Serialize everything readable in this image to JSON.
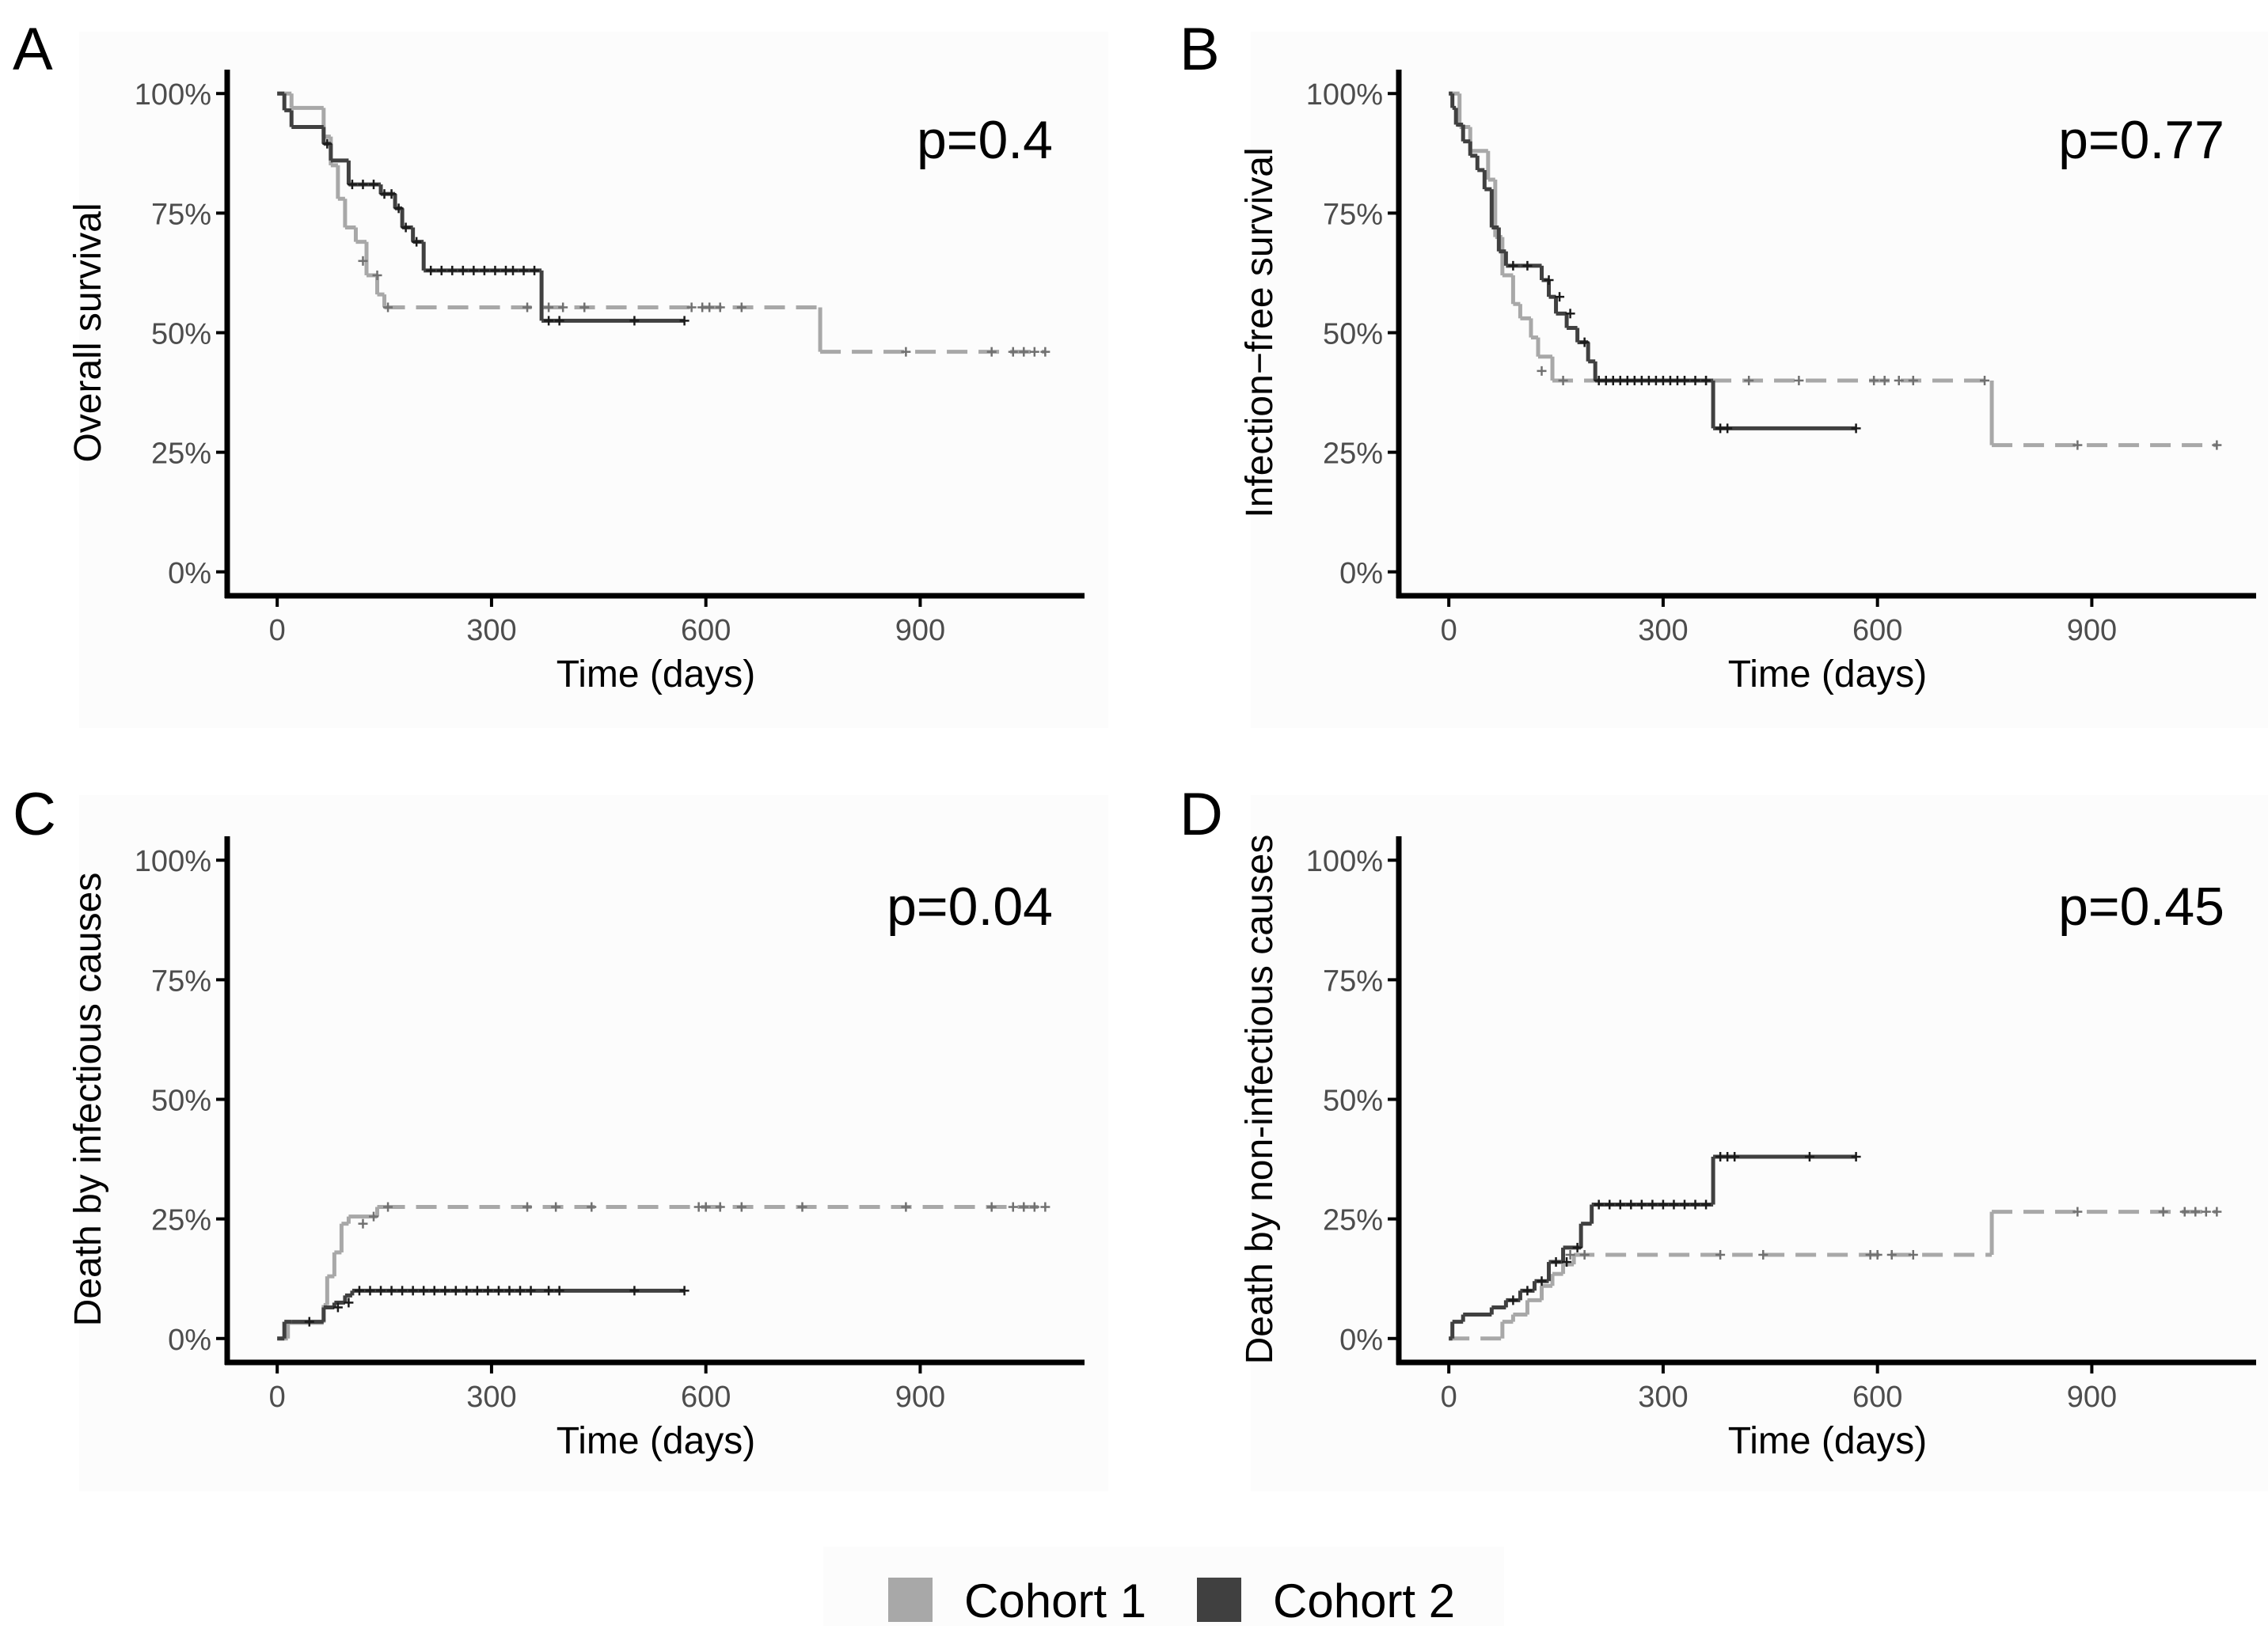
{
  "colors": {
    "cohort1": "#a8a8a8",
    "cohort2": "#404040",
    "axis": "#000000",
    "tick_text": "#4d4d4d",
    "panel_bg": "#fcfcfc"
  },
  "legend": {
    "items": [
      {
        "label": "Cohort 1",
        "color": "#a8a8a8"
      },
      {
        "label": "Cohort 2",
        "color": "#404040"
      }
    ]
  },
  "chart_data": [
    {
      "type": "line",
      "panel": "A",
      "title": "",
      "xlabel": "Time (days)",
      "ylabel": "Overall survival",
      "pvalue": "p=0.4",
      "xlim": [
        -70,
        1130
      ],
      "ylim": [
        -0.05,
        1.05
      ],
      "xticks": [
        0,
        300,
        600,
        900
      ],
      "xtick_labels": [
        "0",
        "300",
        "600",
        "900"
      ],
      "yticks": [
        0,
        0.25,
        0.5,
        0.75,
        1
      ],
      "ytick_labels": [
        "0%",
        "25%",
        "50%",
        "75%",
        "100%"
      ],
      "series": [
        {
          "name": "Cohort 1",
          "dashed_after": 150,
          "x": [
            0,
            20,
            20,
            65,
            65,
            75,
            75,
            85,
            85,
            95,
            95,
            110,
            110,
            125,
            125,
            140,
            140,
            150,
            150,
            760,
            760,
            1075
          ],
          "y": [
            1,
            1,
            0.97,
            0.97,
            0.91,
            0.91,
            0.85,
            0.85,
            0.78,
            0.78,
            0.72,
            0.72,
            0.69,
            0.69,
            0.62,
            0.62,
            0.58,
            0.58,
            0.553,
            0.553,
            0.46,
            0.46
          ],
          "censor_x": [
            120,
            140,
            155,
            350,
            380,
            400,
            430,
            580,
            595,
            605,
            620,
            650,
            880,
            1000,
            1030,
            1045,
            1060,
            1075
          ],
          "censor_y": [
            0.65,
            0.62,
            0.553,
            0.553,
            0.553,
            0.553,
            0.553,
            0.553,
            0.553,
            0.553,
            0.553,
            0.553,
            0.46,
            0.46,
            0.46,
            0.46,
            0.46,
            0.46
          ]
        },
        {
          "name": "Cohort 2",
          "dashed_after": null,
          "x": [
            0,
            10,
            10,
            20,
            20,
            65,
            65,
            75,
            75,
            100,
            100,
            145,
            145,
            165,
            165,
            175,
            175,
            190,
            190,
            205,
            205,
            370,
            370,
            570
          ],
          "y": [
            1,
            1,
            0.965,
            0.965,
            0.93,
            0.93,
            0.895,
            0.895,
            0.86,
            0.86,
            0.81,
            0.81,
            0.79,
            0.79,
            0.76,
            0.76,
            0.72,
            0.72,
            0.69,
            0.69,
            0.63,
            0.63,
            0.525,
            0.525
          ],
          "censor_x": [
            70,
            105,
            120,
            135,
            150,
            160,
            170,
            180,
            195,
            215,
            230,
            245,
            260,
            275,
            290,
            305,
            320,
            330,
            345,
            360,
            380,
            395,
            500,
            570
          ],
          "censor_y": [
            0.895,
            0.81,
            0.81,
            0.81,
            0.79,
            0.79,
            0.76,
            0.72,
            0.69,
            0.63,
            0.63,
            0.63,
            0.63,
            0.63,
            0.63,
            0.63,
            0.63,
            0.63,
            0.63,
            0.63,
            0.525,
            0.525,
            0.525,
            0.525
          ]
        }
      ]
    },
    {
      "type": "line",
      "panel": "B",
      "title": "",
      "xlabel": "Time (days)",
      "ylabel": "Infection−free survival",
      "pvalue": "p=0.77",
      "xlim": [
        -70,
        1130
      ],
      "ylim": [
        -0.05,
        1.05
      ],
      "xticks": [
        0,
        300,
        600,
        900
      ],
      "xtick_labels": [
        "0",
        "300",
        "600",
        "900"
      ],
      "yticks": [
        0,
        0.25,
        0.5,
        0.75,
        1
      ],
      "ytick_labels": [
        "0%",
        "25%",
        "50%",
        "75%",
        "100%"
      ],
      "series": [
        {
          "name": "Cohort 1",
          "dashed_after": 145,
          "x": [
            0,
            15,
            15,
            30,
            30,
            55,
            55,
            65,
            65,
            75,
            75,
            90,
            90,
            100,
            100,
            115,
            115,
            125,
            125,
            145,
            145,
            760,
            760,
            1075
          ],
          "y": [
            1,
            1,
            0.93,
            0.93,
            0.88,
            0.88,
            0.82,
            0.82,
            0.7,
            0.7,
            0.62,
            0.62,
            0.56,
            0.56,
            0.53,
            0.53,
            0.49,
            0.49,
            0.45,
            0.45,
            0.4,
            0.4,
            0.265,
            0.265
          ],
          "censor_x": [
            130,
            160,
            360,
            420,
            490,
            595,
            610,
            630,
            650,
            750,
            880,
            1075
          ],
          "censor_y": [
            0.42,
            0.4,
            0.4,
            0.4,
            0.4,
            0.4,
            0.4,
            0.4,
            0.4,
            0.4,
            0.265,
            0.265
          ]
        },
        {
          "name": "Cohort 2",
          "dashed_after": null,
          "x": [
            0,
            5,
            5,
            10,
            10,
            20,
            20,
            30,
            30,
            40,
            40,
            50,
            50,
            60,
            60,
            70,
            70,
            80,
            80,
            100,
            100,
            130,
            130,
            140,
            140,
            150,
            150,
            165,
            165,
            180,
            180,
            195,
            195,
            205,
            205,
            370,
            370,
            570
          ],
          "y": [
            1,
            1,
            0.97,
            0.97,
            0.935,
            0.935,
            0.9,
            0.9,
            0.87,
            0.87,
            0.84,
            0.84,
            0.8,
            0.8,
            0.72,
            0.72,
            0.67,
            0.67,
            0.64,
            0.64,
            0.64,
            0.64,
            0.61,
            0.61,
            0.575,
            0.575,
            0.54,
            0.54,
            0.51,
            0.51,
            0.48,
            0.48,
            0.44,
            0.44,
            0.4,
            0.4,
            0.3,
            0.3
          ],
          "censor_x": [
            90,
            110,
            140,
            155,
            170,
            190,
            210,
            220,
            230,
            240,
            250,
            260,
            270,
            280,
            290,
            300,
            310,
            320,
            330,
            345,
            360,
            380,
            390,
            570
          ],
          "censor_y": [
            0.64,
            0.64,
            0.61,
            0.575,
            0.54,
            0.48,
            0.4,
            0.4,
            0.4,
            0.4,
            0.4,
            0.4,
            0.4,
            0.4,
            0.4,
            0.4,
            0.4,
            0.4,
            0.4,
            0.4,
            0.4,
            0.3,
            0.3,
            0.3
          ]
        }
      ]
    },
    {
      "type": "line",
      "panel": "C",
      "title": "",
      "xlabel": "Time (days)",
      "ylabel": "Death by infectious causes",
      "pvalue": "p=0.04",
      "xlim": [
        -70,
        1130
      ],
      "ylim": [
        -0.05,
        1.05
      ],
      "xticks": [
        0,
        300,
        600,
        900
      ],
      "xtick_labels": [
        "0",
        "300",
        "600",
        "900"
      ],
      "yticks": [
        0,
        0.25,
        0.5,
        0.75,
        1
      ],
      "ytick_labels": [
        "0%",
        "25%",
        "50%",
        "75%",
        "100%"
      ],
      "series": [
        {
          "name": "Cohort 1",
          "dashed_after": 150,
          "x": [
            0,
            15,
            15,
            65,
            65,
            70,
            70,
            80,
            80,
            90,
            90,
            100,
            100,
            140,
            140,
            150,
            150,
            1075
          ],
          "y": [
            0,
            0,
            0.033,
            0.033,
            0.07,
            0.07,
            0.13,
            0.13,
            0.18,
            0.18,
            0.24,
            0.24,
            0.255,
            0.255,
            0.275,
            0.275,
            0.275,
            0.275
          ],
          "censor_x": [
            120,
            135,
            155,
            350,
            390,
            440,
            590,
            600,
            620,
            650,
            735,
            880,
            1000,
            1030,
            1045,
            1060,
            1075
          ],
          "censor_y": [
            0.24,
            0.255,
            0.275,
            0.275,
            0.275,
            0.275,
            0.275,
            0.275,
            0.275,
            0.275,
            0.275,
            0.275,
            0.275,
            0.275,
            0.275,
            0.275,
            0.275
          ]
        },
        {
          "name": "Cohort 2",
          "dashed_after": null,
          "x": [
            0,
            10,
            10,
            20,
            20,
            65,
            65,
            80,
            80,
            95,
            95,
            105,
            105,
            570
          ],
          "y": [
            0,
            0,
            0.035,
            0.035,
            0.035,
            0.035,
            0.065,
            0.065,
            0.075,
            0.075,
            0.09,
            0.09,
            0.1,
            0.1
          ],
          "censor_x": [
            45,
            85,
            100,
            115,
            130,
            145,
            160,
            175,
            190,
            205,
            220,
            235,
            250,
            265,
            280,
            295,
            310,
            325,
            340,
            355,
            380,
            395,
            500,
            570
          ],
          "censor_y": [
            0.035,
            0.065,
            0.075,
            0.1,
            0.1,
            0.1,
            0.1,
            0.1,
            0.1,
            0.1,
            0.1,
            0.1,
            0.1,
            0.1,
            0.1,
            0.1,
            0.1,
            0.1,
            0.1,
            0.1,
            0.1,
            0.1,
            0.1,
            0.1
          ]
        }
      ]
    },
    {
      "type": "line",
      "panel": "D",
      "title": "",
      "xlabel": "Time (days)",
      "ylabel": "Death by non-infectious causes",
      "pvalue": "p=0.45",
      "xlim": [
        -70,
        1130
      ],
      "ylim": [
        -0.05,
        1.05
      ],
      "xticks": [
        0,
        300,
        600,
        900
      ],
      "xtick_labels": [
        "0",
        "300",
        "600",
        "900"
      ],
      "yticks": [
        0,
        0.25,
        0.5,
        0.75,
        1
      ],
      "ytick_labels": [
        "0%",
        "25%",
        "50%",
        "75%",
        "100%"
      ],
      "series": [
        {
          "name": "Cohort 1",
          "dashed_after": 0,
          "x": [
            0,
            75,
            75,
            90,
            90,
            110,
            110,
            130,
            130,
            145,
            145,
            160,
            160,
            175,
            175,
            760,
            760,
            1075
          ],
          "y": [
            0,
            0,
            0.035,
            0.035,
            0.05,
            0.05,
            0.08,
            0.08,
            0.11,
            0.11,
            0.135,
            0.135,
            0.155,
            0.155,
            0.175,
            0.175,
            0.265,
            0.265
          ],
          "censor_x": [
            170,
            190,
            380,
            440,
            590,
            600,
            620,
            650,
            880,
            1000,
            1030,
            1045,
            1060,
            1075
          ],
          "censor_y": [
            0.175,
            0.175,
            0.175,
            0.175,
            0.175,
            0.175,
            0.175,
            0.175,
            0.265,
            0.265,
            0.265,
            0.265,
            0.265,
            0.265
          ]
        },
        {
          "name": "Cohort 2",
          "dashed_after": null,
          "x": [
            0,
            5,
            5,
            20,
            20,
            60,
            60,
            80,
            80,
            100,
            100,
            120,
            120,
            140,
            140,
            160,
            160,
            185,
            185,
            200,
            200,
            370,
            370,
            570
          ],
          "y": [
            0,
            0,
            0.035,
            0.035,
            0.05,
            0.05,
            0.065,
            0.065,
            0.08,
            0.08,
            0.1,
            0.1,
            0.12,
            0.12,
            0.16,
            0.16,
            0.19,
            0.19,
            0.24,
            0.24,
            0.28,
            0.28,
            0.38,
            0.38
          ],
          "censor_x": [
            90,
            110,
            130,
            150,
            165,
            180,
            210,
            225,
            240,
            255,
            270,
            285,
            300,
            315,
            330,
            345,
            360,
            380,
            390,
            400,
            505,
            570
          ],
          "censor_y": [
            0.08,
            0.1,
            0.12,
            0.16,
            0.16,
            0.19,
            0.28,
            0.28,
            0.28,
            0.28,
            0.28,
            0.28,
            0.28,
            0.28,
            0.28,
            0.28,
            0.28,
            0.38,
            0.38,
            0.38,
            0.38,
            0.38
          ]
        }
      ]
    }
  ]
}
